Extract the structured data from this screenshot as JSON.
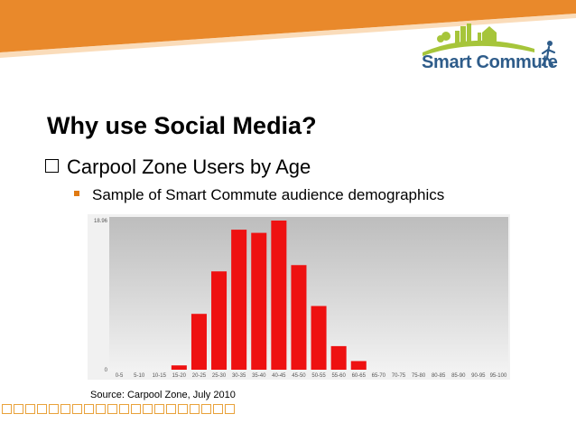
{
  "header": {
    "logo_text": "Smart Commute",
    "colors": {
      "orange": "#e9892b",
      "green": "#a6c53a",
      "blue": "#2e5c8a"
    }
  },
  "slide": {
    "title": "Why use Social Media?",
    "bullet_1": "Carpool Zone Users by Age",
    "bullet_2": "Sample of Smart Commute audience demographics",
    "source": "Source: Carpool Zone, July 2010"
  },
  "chart_data": {
    "type": "bar",
    "categories": [
      "0-5",
      "5-10",
      "10-15",
      "15-20",
      "20-25",
      "25-30",
      "30-35",
      "35-40",
      "40-45",
      "45-50",
      "50-55",
      "55-60",
      "60-65",
      "65-70",
      "70-75",
      "75-80",
      "80-85",
      "85-90",
      "90-95",
      "95-100"
    ],
    "values": [
      0,
      0,
      0,
      0.55,
      7.1,
      12.5,
      17.8,
      17.4,
      18.96,
      13.3,
      8.1,
      3.0,
      1.1,
      0,
      0,
      0,
      0,
      0,
      0,
      0
    ],
    "y_tick_labels": [
      "0",
      "18.96"
    ],
    "ylim": [
      0,
      18.96
    ],
    "bar_color": "#ee1111",
    "grid": false
  }
}
